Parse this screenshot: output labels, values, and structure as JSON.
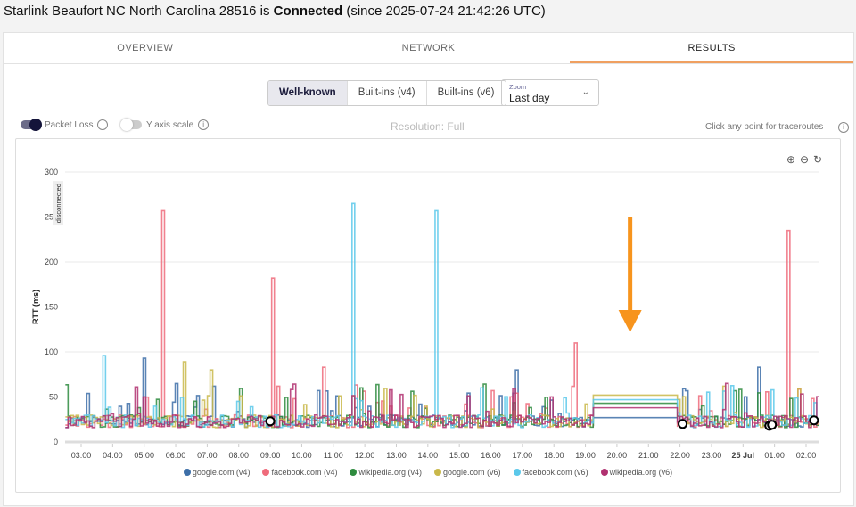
{
  "header": {
    "prefix": "Starlink Beaufort NC North Carolina 28516 is ",
    "status": "Connected",
    "suffix": " (since 2025-07-24 21:42:26 UTC)"
  },
  "tabs": [
    {
      "label": "OVERVIEW"
    },
    {
      "label": "NETWORK"
    },
    {
      "label": "RESULTS",
      "active": true
    }
  ],
  "target_groups": [
    {
      "label": "Well-known",
      "selected": true
    },
    {
      "label": "Built-ins (v4)"
    },
    {
      "label": "Built-ins (v6)"
    }
  ],
  "zoom": {
    "label": "Zoom",
    "value": "Last day"
  },
  "controls": {
    "packet_loss": {
      "label": "Packet Loss",
      "on": true
    },
    "y_axis_scale": {
      "label": "Y axis scale",
      "on": false
    },
    "resolution": "Resolution: Full",
    "hint": "Click any point for traceroutes"
  },
  "colors": {
    "accent": "#f0a060",
    "arrow": "#f7941d"
  },
  "chart_data": {
    "type": "line",
    "ylabel": "RTT (ms)",
    "ylim": [
      0,
      300
    ],
    "yticks": [
      0,
      50,
      100,
      150,
      200,
      250,
      300
    ],
    "xticks": [
      "03:00",
      "04:00",
      "05:00",
      "06:00",
      "07:00",
      "08:00",
      "09:00",
      "10:00",
      "11:00",
      "12:00",
      "13:00",
      "14:00",
      "15:00",
      "16:00",
      "17:00",
      "18:00",
      "19:00",
      "20:00",
      "21:00",
      "22:00",
      "23:00",
      "25 Jul",
      "01:00",
      "02:00"
    ],
    "disconnected_label": "disconnected",
    "grid": true,
    "legend_placement": "bottom",
    "series": [
      {
        "name": "google.com (v4)",
        "color": "#3d6fa8",
        "gap_value": 27,
        "spikes": [
          [
            "05:00",
            93
          ],
          [
            "16:45",
            80
          ],
          [
            "00:30",
            83
          ]
        ]
      },
      {
        "name": "facebook.com (v4)",
        "color": "#ef6b7b",
        "gap_value": null,
        "spikes": [
          [
            "05:35",
            257
          ],
          [
            "09:05",
            182
          ],
          [
            "10:40",
            83
          ],
          [
            "18:40",
            110
          ],
          [
            "01:25",
            235
          ]
        ]
      },
      {
        "name": "wikipedia.org (v4)",
        "color": "#2e8b3e",
        "gap_value": 43,
        "spikes": []
      },
      {
        "name": "google.com (v6)",
        "color": "#c9b84a",
        "gap_value": 52,
        "spikes": [
          [
            "06:15",
            89
          ],
          [
            "07:05",
            80
          ]
        ]
      },
      {
        "name": "facebook.com (v6)",
        "color": "#5bc8ea",
        "gap_value": 47,
        "spikes": [
          [
            "03:40",
            96
          ],
          [
            "11:35",
            265
          ],
          [
            "14:15",
            257
          ]
        ]
      },
      {
        "name": "wikipedia.org (v6)",
        "color": "#b03070",
        "gap_value": 38,
        "spikes": [
          [
            "23:25",
            65
          ]
        ]
      }
    ],
    "gap": [
      "19:15",
      "21:55"
    ],
    "packet_loss_points": [
      [
        "09:00",
        23
      ],
      [
        "22:05",
        20
      ],
      [
        "00:50",
        18
      ],
      [
        "00:55",
        19
      ],
      [
        "02:15",
        24
      ]
    ],
    "annotation": {
      "type": "arrow",
      "pointing_at": "20:25"
    }
  }
}
